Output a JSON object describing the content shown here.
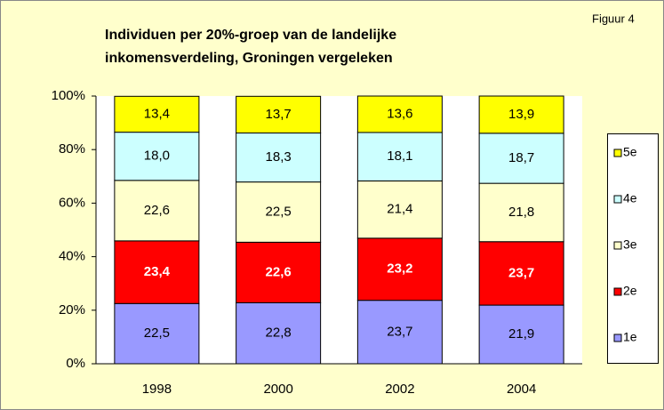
{
  "chart_data": {
    "type": "stacked_bar",
    "title": [
      "Individuen per 20%-groep van de landelijke",
      "inkomensverdeling, Groningen vergeleken"
    ],
    "annotation": "Figuur 4",
    "categories": [
      "1998",
      "2000",
      "2002",
      "2004"
    ],
    "series": [
      {
        "name": "1e",
        "color": "#9999ff",
        "values": [
          22.5,
          22.8,
          23.7,
          21.9
        ],
        "value_labels": [
          "22,5",
          "22,8",
          "23,7",
          "21,9"
        ]
      },
      {
        "name": "2e",
        "color": "#ff0000",
        "values": [
          23.4,
          22.6,
          23.2,
          23.7
        ],
        "value_labels": [
          "23,4",
          "22,6",
          "23,2",
          "23,7"
        ]
      },
      {
        "name": "3e",
        "color": "#ffffcc",
        "values": [
          22.6,
          22.5,
          21.4,
          21.8
        ],
        "value_labels": [
          "22,6",
          "22,5",
          "21,4",
          "21,8"
        ]
      },
      {
        "name": "4e",
        "color": "#ccffff",
        "values": [
          18.0,
          18.3,
          18.1,
          18.7
        ],
        "value_labels": [
          "18,0",
          "18,3",
          "18,1",
          "18,7"
        ]
      },
      {
        "name": "5e",
        "color": "#ffff00",
        "values": [
          13.4,
          13.7,
          13.6,
          13.9
        ],
        "value_labels": [
          "13,4",
          "13,7",
          "13,6",
          "13,9"
        ]
      }
    ],
    "ylim": [
      0,
      100
    ],
    "yticks": [
      {
        "value": 0,
        "label": "0%"
      },
      {
        "value": 20,
        "label": "20%"
      },
      {
        "value": 40,
        "label": "40%"
      },
      {
        "value": 60,
        "label": "60%"
      },
      {
        "value": 80,
        "label": "80%"
      },
      {
        "value": 100,
        "label": "100%"
      }
    ],
    "grid": false,
    "legend": "right"
  }
}
